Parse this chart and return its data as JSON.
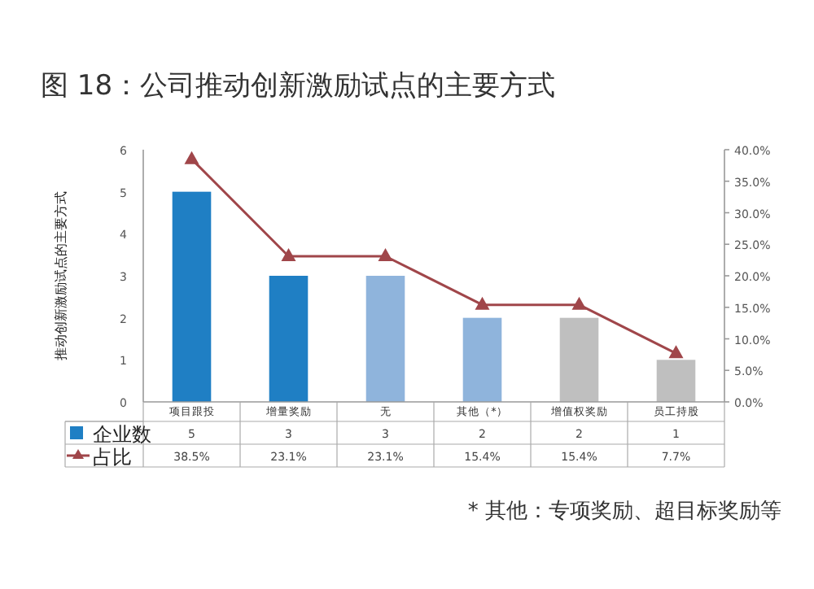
{
  "chart_data": {
    "type": "bar",
    "title": "图 18：公司推动创新激励试点的主要方式",
    "ylabel": "推动创新激励试点的主要方式",
    "categories": [
      "项目跟投",
      "增量奖励",
      "无",
      "其他（*）",
      "增值权奖励",
      "员工持股"
    ],
    "series": [
      {
        "name": "企业数",
        "colors": [
          "#1f7fc4",
          "#1f7fc4",
          "#8fb4dc",
          "#8fb4dc",
          "#bfbfbf",
          "#bfbfbf"
        ],
        "values": [
          5,
          3,
          3,
          2,
          2,
          1
        ],
        "value_labels": [
          "5",
          "3",
          "3",
          "2",
          "2",
          "1"
        ]
      },
      {
        "name": "占比",
        "type": "line",
        "axis": "y2",
        "color": "#a0464a",
        "marker": "triangle",
        "values": [
          38.5,
          23.1,
          23.1,
          15.4,
          15.4,
          7.7
        ],
        "value_labels": [
          "38.5%",
          "23.1%",
          "23.1%",
          "15.4%",
          "15.4%",
          "7.7%"
        ]
      }
    ],
    "ylim": [
      0,
      6
    ],
    "yticks": [
      0,
      1,
      2,
      3,
      4,
      5,
      6
    ],
    "y2lim": [
      0,
      40
    ],
    "y2ticks": [
      {
        "value": 0,
        "label": "0.0%"
      },
      {
        "value": 5,
        "label": "5.0%"
      },
      {
        "value": 10,
        "label": "10.0%"
      },
      {
        "value": 15,
        "label": "15.0%"
      },
      {
        "value": 20,
        "label": "20.0%"
      },
      {
        "value": 25,
        "label": "25.0%"
      },
      {
        "value": 30,
        "label": "30.0%"
      },
      {
        "value": 35,
        "label": "35.0%"
      },
      {
        "value": 40,
        "label": "40.0%"
      }
    ],
    "legend": "bottom left",
    "grid": false,
    "annotations": [
      "* 其他：专项奖励、超目标奖励等"
    ]
  }
}
